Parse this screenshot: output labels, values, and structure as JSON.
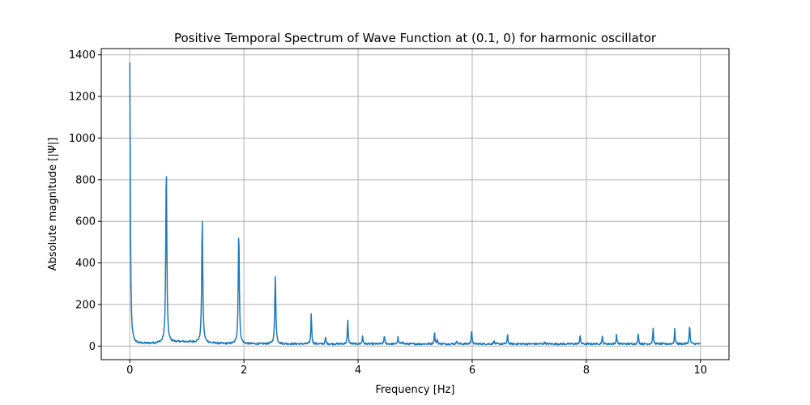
{
  "chart_data": {
    "type": "line",
    "title": "Positive Temporal Spectrum of Wave Function at (0.1, 0) for harmonic oscillator",
    "xlabel": "Frequency [Hz]",
    "ylabel": "Absolute magnitude [|Ψ|]",
    "xlim": [
      -0.5,
      10.5
    ],
    "ylim": [
      -65,
      1430
    ],
    "x_ticks": [
      0,
      2,
      4,
      6,
      8,
      10
    ],
    "y_ticks": [
      0,
      200,
      400,
      600,
      800,
      1000,
      1200,
      1400
    ],
    "grid": true,
    "line_color": "#1f77b4",
    "baseline": 8,
    "peaks": [
      {
        "x": 0.0,
        "y": 1360
      },
      {
        "x": 0.64,
        "y": 855
      },
      {
        "x": 1.27,
        "y": 598
      },
      {
        "x": 1.91,
        "y": 550
      },
      {
        "x": 2.55,
        "y": 333
      },
      {
        "x": 3.18,
        "y": 158
      },
      {
        "x": 3.43,
        "y": 38
      },
      {
        "x": 3.82,
        "y": 122
      },
      {
        "x": 4.08,
        "y": 48
      },
      {
        "x": 4.46,
        "y": 50
      },
      {
        "x": 4.7,
        "y": 40
      },
      {
        "x": 4.78,
        "y": 22
      },
      {
        "x": 5.34,
        "y": 65
      },
      {
        "x": 5.39,
        "y": 30
      },
      {
        "x": 5.73,
        "y": 25
      },
      {
        "x": 5.99,
        "y": 77
      },
      {
        "x": 6.38,
        "y": 25
      },
      {
        "x": 6.62,
        "y": 50
      },
      {
        "x": 7.27,
        "y": 20
      },
      {
        "x": 7.89,
        "y": 50
      },
      {
        "x": 8.28,
        "y": 45
      },
      {
        "x": 8.53,
        "y": 52
      },
      {
        "x": 8.91,
        "y": 58
      },
      {
        "x": 9.17,
        "y": 83
      },
      {
        "x": 9.55,
        "y": 78
      },
      {
        "x": 9.81,
        "y": 102
      }
    ]
  }
}
